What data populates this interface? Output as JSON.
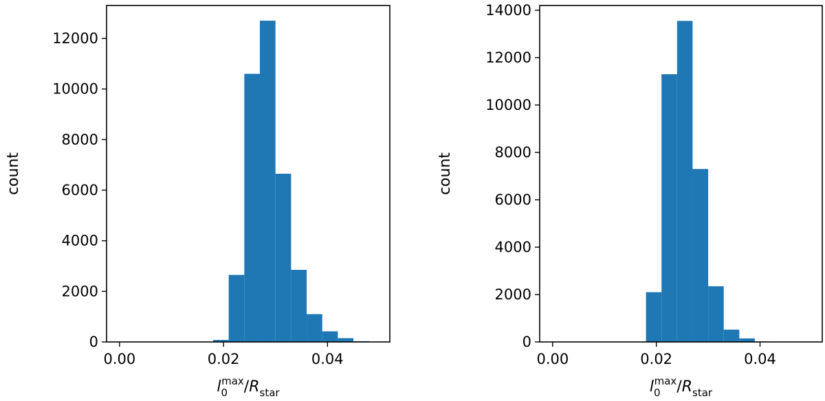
{
  "chart_data": [
    {
      "type": "bar",
      "panel": "left",
      "title": "",
      "ylabel": "count",
      "xlabel": {
        "symbol": "l",
        "sub": "0",
        "sup": "max",
        "slash": "/",
        "denom": "R",
        "denom_sub": "star"
      },
      "xlim": [
        -0.0025,
        0.052
      ],
      "ylim": [
        0,
        13300
      ],
      "xticks": [
        0.0,
        0.02,
        0.04
      ],
      "xtick_labels": [
        "0.00",
        "0.02",
        "0.04"
      ],
      "yticks": [
        0,
        2000,
        4000,
        6000,
        8000,
        10000,
        12000
      ],
      "ytick_labels": [
        "0",
        "2000",
        "4000",
        "6000",
        "8000",
        "10000",
        "12000"
      ],
      "bin_edges": [
        0.0,
        0.003,
        0.006,
        0.009,
        0.012,
        0.015,
        0.018,
        0.021,
        0.024,
        0.027,
        0.03,
        0.033,
        0.036,
        0.039,
        0.042,
        0.045,
        0.048
      ],
      "values": [
        0,
        0,
        0,
        0,
        0,
        0,
        80,
        2650,
        10600,
        12700,
        6650,
        2850,
        1100,
        420,
        150,
        30
      ],
      "color": "#1f77b4"
    },
    {
      "type": "bar",
      "panel": "right",
      "title": "",
      "ylabel": "count",
      "xlabel": {
        "symbol": "l",
        "sub": "0",
        "sup": "max",
        "slash": "/",
        "denom": "R",
        "denom_sub": "star"
      },
      "xlim": [
        -0.0025,
        0.052
      ],
      "ylim": [
        0,
        14200
      ],
      "xticks": [
        0.0,
        0.02,
        0.04
      ],
      "xtick_labels": [
        "0.00",
        "0.02",
        "0.04"
      ],
      "yticks": [
        0,
        2000,
        4000,
        6000,
        8000,
        10000,
        12000,
        14000
      ],
      "ytick_labels": [
        "0",
        "2000",
        "4000",
        "6000",
        "8000",
        "10000",
        "12000",
        "14000"
      ],
      "bin_edges": [
        0.0,
        0.003,
        0.006,
        0.009,
        0.012,
        0.015,
        0.018,
        0.021,
        0.024,
        0.027,
        0.03,
        0.033,
        0.036,
        0.039,
        0.042,
        0.045,
        0.048
      ],
      "values": [
        0,
        0,
        0,
        0,
        0,
        0,
        2100,
        11300,
        13550,
        7300,
        2350,
        520,
        150,
        20,
        0,
        0
      ],
      "color": "#1f77b4"
    }
  ]
}
